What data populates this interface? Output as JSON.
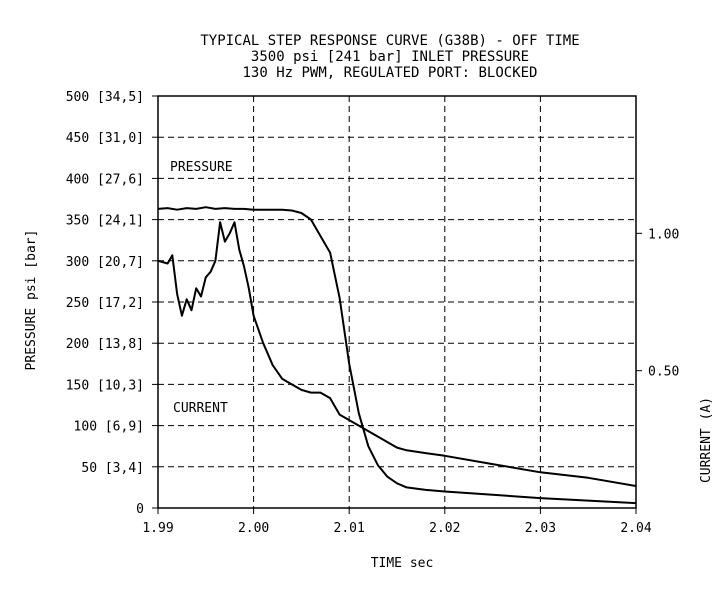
{
  "chart_data": {
    "type": "line",
    "title": "TYPICAL STEP RESPONSE CURVE (G38B) - OFF TIME",
    "subtitle_lines": [
      "3500 psi [241 bar] INLET PRESSURE",
      "130 Hz PWM, REGULATED PORT: BLOCKED"
    ],
    "xlabel": "TIME sec",
    "ylabel": "PRESSURE psi [bar]",
    "y2label": "CURRENT (A)",
    "xlim": [
      1.99,
      2.04
    ],
    "ylim": [
      0,
      500
    ],
    "y2lim": [
      0,
      1.5
    ],
    "grid": true,
    "x_ticks": [
      1.99,
      2.0,
      2.01,
      2.02,
      2.03,
      2.04
    ],
    "x_tick_labels": [
      "1.99",
      "2.00",
      "2.01",
      "2.02",
      "2.03",
      "2.04"
    ],
    "y_ticks": [
      0,
      50,
      100,
      150,
      200,
      250,
      300,
      350,
      400,
      450,
      500
    ],
    "y_tick_labels": [
      "0",
      "50 [3,4]",
      "100 [6,9]",
      "150 [10,3]",
      "200 [13,8]",
      "250 [17,2]",
      "300 [20,7]",
      "350 [24,1]",
      "400 [27,6]",
      "450 [31,0]",
      "500 [34,5]"
    ],
    "y2_ticks": [
      0.5,
      1.0
    ],
    "y2_tick_labels": [
      "0.50",
      "1.00"
    ],
    "series": [
      {
        "name": "PRESSURE",
        "axis": "left",
        "x": [
          1.99,
          1.991,
          1.992,
          1.993,
          1.994,
          1.995,
          1.996,
          1.997,
          1.998,
          1.999,
          2.0,
          2.001,
          2.002,
          2.003,
          2.004,
          2.005,
          2.006,
          2.007,
          2.008,
          2.009,
          2.01,
          2.011,
          2.012,
          2.013,
          2.014,
          2.015,
          2.016,
          2.018,
          2.02,
          2.025,
          2.03,
          2.035,
          2.04
        ],
        "y": [
          363,
          364,
          362,
          364,
          363,
          365,
          363,
          364,
          363,
          363,
          362,
          362,
          362,
          362,
          361,
          358,
          350,
          330,
          310,
          255,
          175,
          115,
          75,
          52,
          38,
          30,
          25,
          22,
          20,
          16,
          12,
          9,
          6
        ]
      },
      {
        "name": "CURRENT",
        "axis": "right",
        "x": [
          1.99,
          1.991,
          1.9915,
          1.992,
          1.9925,
          1.993,
          1.9935,
          1.994,
          1.9945,
          1.995,
          1.9955,
          1.996,
          1.9965,
          1.997,
          1.9975,
          1.998,
          1.9985,
          1.999,
          1.9995,
          2.0,
          2.001,
          2.002,
          2.003,
          2.004,
          2.005,
          2.006,
          2.007,
          2.008,
          2.009,
          2.01,
          2.011,
          2.012,
          2.013,
          2.014,
          2.015,
          2.016,
          2.018,
          2.02,
          2.025,
          2.03,
          2.035,
          2.04
        ],
        "y": [
          0.9,
          0.89,
          0.92,
          0.78,
          0.7,
          0.76,
          0.72,
          0.8,
          0.77,
          0.84,
          0.86,
          0.9,
          1.04,
          0.97,
          1.0,
          1.04,
          0.94,
          0.88,
          0.8,
          0.7,
          0.6,
          0.52,
          0.47,
          0.45,
          0.43,
          0.42,
          0.42,
          0.4,
          0.34,
          0.32,
          0.3,
          0.28,
          0.26,
          0.24,
          0.22,
          0.21,
          0.2,
          0.19,
          0.16,
          0.13,
          0.11,
          0.08
        ]
      }
    ]
  }
}
